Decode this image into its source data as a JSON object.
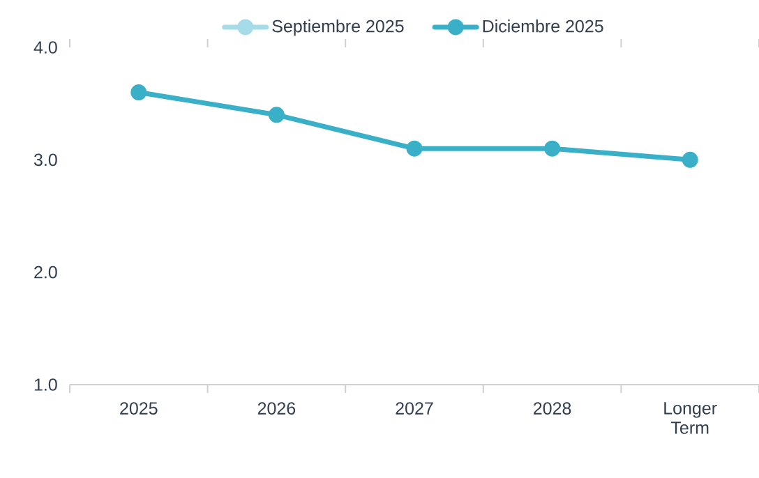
{
  "chart_data": {
    "type": "line",
    "categories": [
      "2025",
      "2026",
      "2027",
      "2028",
      "Longer Term"
    ],
    "series": [
      {
        "name": "Septiembre 2025",
        "color": "#a6dbe8",
        "line_style": "dashed",
        "values": [
          null,
          null,
          null,
          null,
          null
        ]
      },
      {
        "name": "Diciembre 2025",
        "color": "#3ab0c8",
        "line_style": "solid",
        "values": [
          3.6,
          3.4,
          3.1,
          3.1,
          3.0
        ]
      }
    ],
    "ylim": [
      1,
      4
    ],
    "yticks": [
      {
        "value": 1,
        "label": "1.0"
      },
      {
        "value": 2,
        "label": "2.0"
      },
      {
        "value": 3,
        "label": "3.0"
      },
      {
        "value": 4,
        "label": "4.0"
      }
    ],
    "marker": "circle",
    "legend": "top",
    "grid": false
  }
}
